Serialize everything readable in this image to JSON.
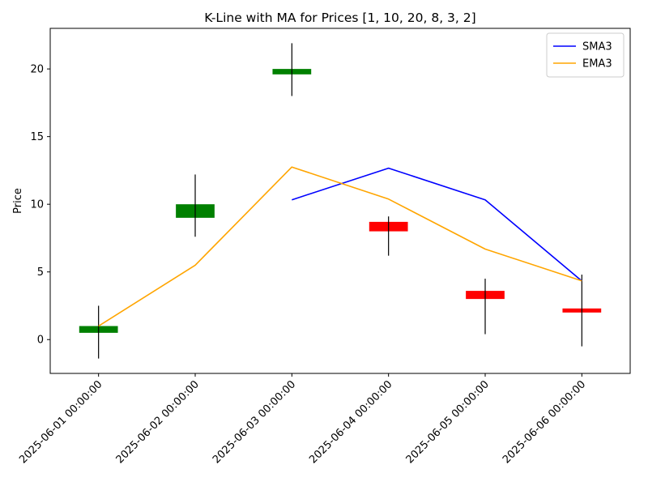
{
  "chart_data": {
    "type": "candlestick",
    "title": "K-Line with MA for Prices [1, 10, 20, 8, 3, 2]",
    "xlabel": "",
    "ylabel": "Price",
    "ylim": [
      -2.5,
      23.0
    ],
    "yticks": [
      0,
      5,
      10,
      15,
      20
    ],
    "grid": false,
    "legend_position": "top-right",
    "categories": [
      "2025-06-01 00:00:00",
      "2025-06-02 00:00:00",
      "2025-06-03 00:00:00",
      "2025-06-04 00:00:00",
      "2025-06-05 00:00:00",
      "2025-06-06 00:00:00"
    ],
    "candles": [
      {
        "open": 0.5,
        "close": 1.0,
        "high": 2.5,
        "low": -1.4
      },
      {
        "open": 9.0,
        "close": 10.0,
        "high": 12.2,
        "low": 7.6
      },
      {
        "open": 19.6,
        "close": 20.0,
        "high": 21.9,
        "low": 18.0
      },
      {
        "open": 8.7,
        "close": 8.0,
        "high": 9.1,
        "low": 6.2
      },
      {
        "open": 3.6,
        "close": 3.0,
        "high": 4.5,
        "low": 0.4
      },
      {
        "open": 2.3,
        "close": 2.0,
        "high": 4.8,
        "low": -0.5
      }
    ],
    "series": [
      {
        "name": "SMA3",
        "color": "#0000ff",
        "values": [
          null,
          null,
          10.33,
          12.67,
          10.33,
          4.33
        ]
      },
      {
        "name": "EMA3",
        "color": "#ffa500",
        "values": [
          1.0,
          5.5,
          12.75,
          10.38,
          6.69,
          4.34
        ]
      }
    ],
    "colors": {
      "up": "#008000",
      "down": "#ff0000",
      "wick": "#000000"
    }
  }
}
